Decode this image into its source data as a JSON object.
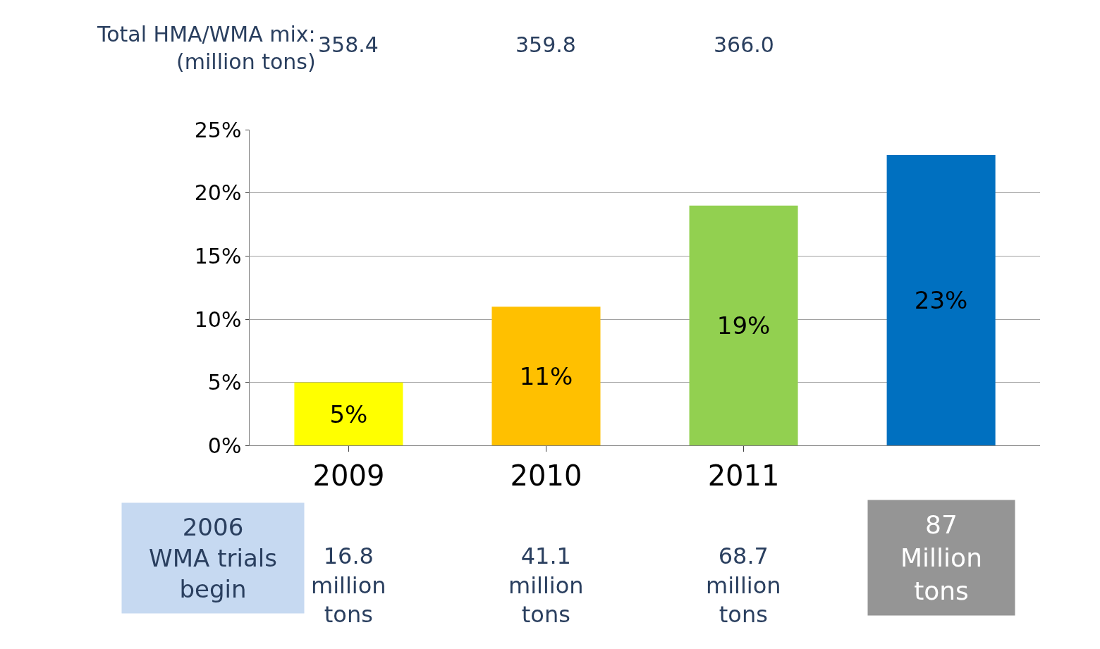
{
  "chart_data": {
    "type": "bar",
    "categories": [
      "2009",
      "2010",
      "2011",
      null
    ],
    "values": [
      5,
      11,
      19,
      23
    ],
    "colors": [
      "#ffff00",
      "#ffc000",
      "#92d050",
      "#0070c0"
    ],
    "value_labels": [
      "5%",
      "11%",
      "19%",
      "23%"
    ],
    "ylim": [
      0,
      25
    ],
    "yticks": [
      {
        "value": 0,
        "label": "0%"
      },
      {
        "value": 5,
        "label": "5%"
      },
      {
        "value": 10,
        "label": "10%"
      },
      {
        "value": 15,
        "label": "15%"
      },
      {
        "value": 20,
        "label": "20%"
      },
      {
        "value": 25,
        "label": "25%"
      }
    ],
    "grid": "y",
    "annotations": [
      "Total HMA/WMA mix:\n(million tons)",
      "358.4",
      "359.8",
      "366.0",
      "16.8\nmillion\ntons",
      "41.1\nmillion\ntons",
      "68.7\nmillion\ntons",
      "2006\nWMA trials\nbegin",
      "87\nMillion\ntons"
    ]
  }
}
